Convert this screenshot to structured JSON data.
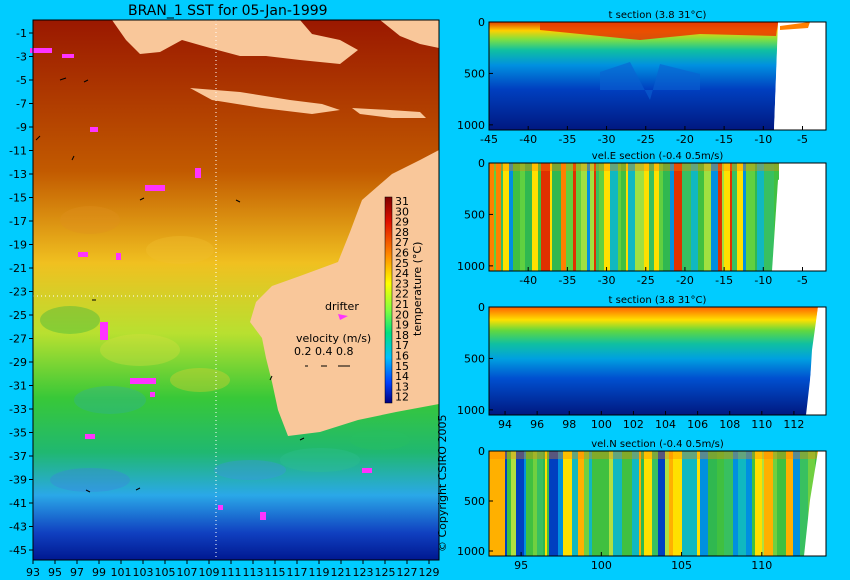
{
  "map": {
    "title": "BRAN_1 SST for 05-Jan-1999",
    "ylabels": [
      "-1",
      "-3",
      "-5",
      "-7",
      "-9",
      "-11",
      "-13",
      "-15",
      "-17",
      "-19",
      "-21",
      "-23",
      "-25",
      "-27",
      "-29",
      "-31",
      "-33",
      "-35",
      "-37",
      "-39",
      "-41",
      "-43",
      "-45"
    ],
    "xlabels": [
      "93",
      "95",
      "97",
      "99",
      "101",
      "103",
      "105",
      "107",
      "109",
      "111",
      "113",
      "115",
      "117",
      "119",
      "121",
      "123",
      "125",
      "127",
      "129"
    ],
    "colorbar_label": "temperature (°C)",
    "colorbar_ticks": [
      "31",
      "30",
      "29",
      "28",
      "27",
      "26",
      "25",
      "24",
      "23",
      "22",
      "21",
      "20",
      "19",
      "18",
      "17",
      "16",
      "15",
      "14",
      "13",
      "12"
    ],
    "drifter_label": "drifter",
    "velocity_label": "velocity (m/s)",
    "velocity_scale": "0.2 0.4 0.8",
    "copyright": "© Copyright CSIRO 2005",
    "colors": {
      "land": "#f9c79a",
      "drifter": "#ff33ff",
      "background": "#00ccff"
    }
  },
  "panels": [
    {
      "id": "t-section-lon",
      "title": "t section (3.8      31°C)",
      "xticks": [
        "-45",
        "-40",
        "-35",
        "-30",
        "-25",
        "-20",
        "-15",
        "-10",
        "-5"
      ],
      "yticks": [
        "0",
        "500",
        "1000"
      ]
    },
    {
      "id": "vel-e-section",
      "title": "vel.E section (-0.4      0.5m/s)",
      "xticks": [
        "-40",
        "-35",
        "-30",
        "-25",
        "-20",
        "-15",
        "-10",
        "-5"
      ],
      "yticks": [
        "0",
        "500",
        "1000"
      ]
    },
    {
      "id": "t-section-lat",
      "title": "t section (3.8      31°C)",
      "xticks": [
        "94",
        "96",
        "98",
        "100",
        "102",
        "104",
        "106",
        "108",
        "110",
        "112"
      ],
      "yticks": [
        "0",
        "500",
        "1000"
      ]
    },
    {
      "id": "vel-n-section",
      "title": "vel.N section (-0.4      0.5m/s)",
      "xticks": [
        "95",
        "100",
        "105",
        "110"
      ],
      "yticks": [
        "0",
        "500",
        "1000"
      ]
    }
  ],
  "chart_data": [
    {
      "type": "heatmap",
      "title": "BRAN_1 SST for 05-Jan-1999",
      "xlim": [
        93,
        130
      ],
      "ylim": [
        -45,
        0
      ],
      "colorbar_range": [
        12,
        31
      ],
      "colorbar_label": "temperature (°C)"
    },
    {
      "type": "heatmap",
      "title": "t section (3.8      31°C)",
      "xlim": [
        -45,
        -2
      ],
      "ylim": [
        1050,
        0
      ],
      "color_range": [
        3.8,
        31
      ]
    },
    {
      "type": "heatmap",
      "title": "vel.E section (-0.4      0.5m/s)",
      "xlim": [
        -45,
        -2
      ],
      "ylim": [
        1050,
        0
      ],
      "color_range": [
        -0.4,
        0.5
      ]
    },
    {
      "type": "heatmap",
      "title": "t section (3.8      31°C)",
      "xlim": [
        93,
        114
      ],
      "ylim": [
        1050,
        0
      ],
      "color_range": [
        3.8,
        31
      ]
    },
    {
      "type": "heatmap",
      "title": "vel.N section (-0.4      0.5m/s)",
      "xlim": [
        93,
        114
      ],
      "ylim": [
        1050,
        0
      ],
      "color_range": [
        -0.4,
        0.5
      ]
    }
  ]
}
